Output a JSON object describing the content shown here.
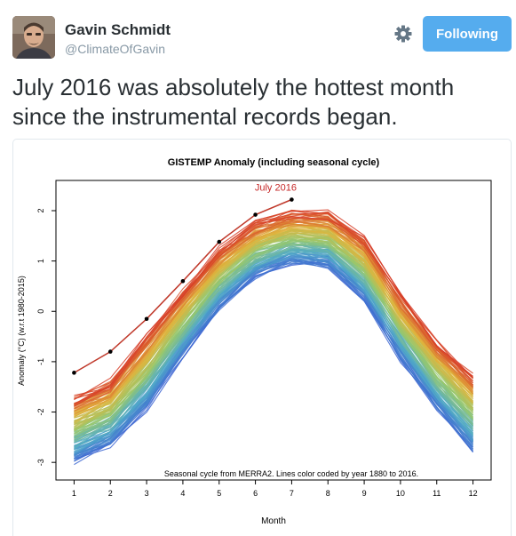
{
  "user": {
    "name": "Gavin Schmidt",
    "handle": "@ClimateOfGavin",
    "follow_label": "Following"
  },
  "tweet": {
    "text": "July 2016 was absolutely the hottest month since the instrumental records began."
  },
  "colors": {
    "follow_button": "#55acee",
    "handle": "#8899a6",
    "highlight_label": "#c62828"
  },
  "icons": {
    "settings": "gear-icon",
    "avatar": "user-photo"
  },
  "chart_data": {
    "type": "line",
    "title": "GISTEMP Anomaly (including seasonal cycle)",
    "xlabel": "Month",
    "ylabel": "Anomaly (°C) (w.r.t 1980-2015)",
    "annotation": "Seasonal cycle from MERRA2. Lines color coded by year 1880 to 2016.",
    "highlight_label": "July 2016",
    "x": [
      1,
      2,
      3,
      4,
      5,
      6,
      7,
      8,
      9,
      10,
      11,
      12
    ],
    "xlim": [
      0.5,
      12.5
    ],
    "ylim": [
      -3.35,
      2.6
    ],
    "xticks": [
      "1",
      "2",
      "3",
      "4",
      "5",
      "6",
      "7",
      "8",
      "9",
      "10",
      "11",
      "12"
    ],
    "yticks": [
      "-3",
      "-2",
      "-1",
      "0",
      "1",
      "2"
    ],
    "year_range": [
      1880,
      2016
    ],
    "highlight_series": {
      "name": "2016",
      "values": [
        -1.22,
        -0.8,
        -0.15,
        0.6,
        1.38,
        1.92,
        2.22
      ]
    },
    "cycle": {
      "coldest_values": [
        -3.05,
        -2.7,
        -2.0,
        -0.95,
        0.0,
        0.65,
        0.95,
        0.85,
        0.2,
        -1.0,
        -2.0,
        -2.85
      ],
      "warmest_values": [
        -1.6,
        -1.25,
        -0.35,
        0.55,
        1.35,
        1.85,
        2.08,
        2.05,
        1.55,
        0.45,
        -0.45,
        -1.1
      ]
    },
    "grid": false,
    "legend": "none"
  }
}
